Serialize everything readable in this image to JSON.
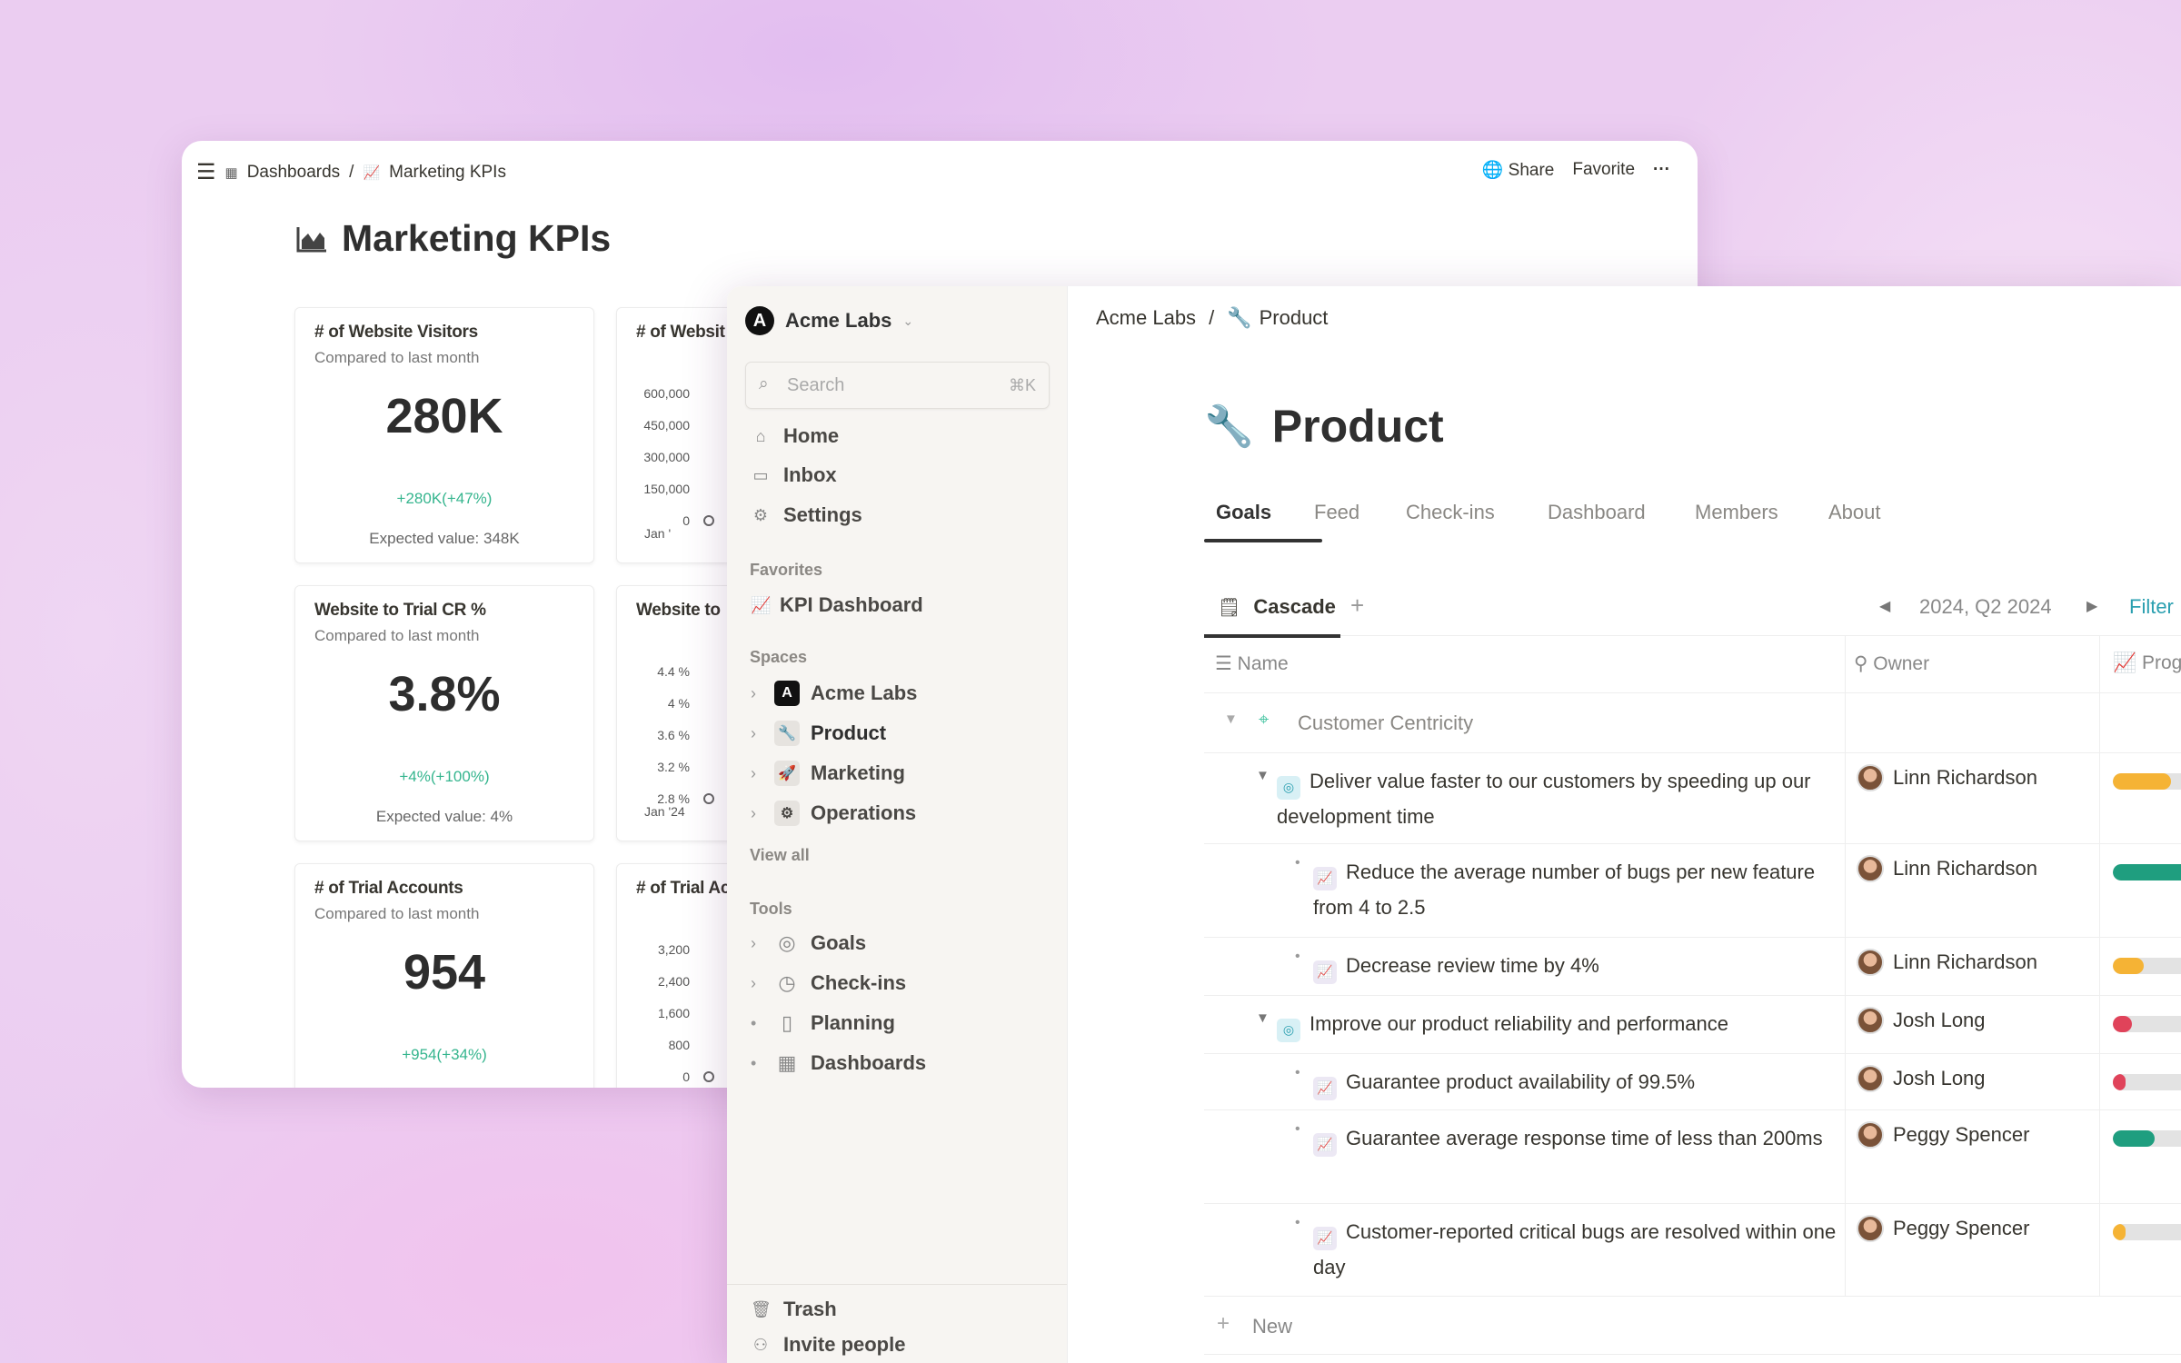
{
  "back_window": {
    "breadcrumb": [
      "Dashboards",
      "Marketing KPIs"
    ],
    "actions": {
      "share": "Share",
      "favorite": "Favorite",
      "more": "···"
    },
    "title": "Marketing KPIs",
    "cards": [
      {
        "title": "# of Website Visitors",
        "subtitle": "Compared to last month",
        "value": "280K",
        "delta": "+280K(+47%)",
        "expected": "Expected value: 348K"
      },
      {
        "title": "Website to Trial CR %",
        "subtitle": "Compared to last month",
        "value": "3.8%",
        "delta": "+4%(+100%)",
        "expected": "Expected value: 4%"
      },
      {
        "title": "# of Trial Accounts",
        "subtitle": "Compared to last month",
        "value": "954",
        "delta": "+954(+34%)",
        "expected": ""
      }
    ],
    "chart_cards": [
      {
        "title": "# of Websit",
        "ticks": [
          "600,000",
          "450,000",
          "300,000",
          "150,000",
          "0"
        ],
        "x_label": "Jan '"
      },
      {
        "title": "Website to",
        "ticks": [
          "4.4 %",
          "4 %",
          "3.6 %",
          "3.2 %",
          "2.8 %"
        ],
        "x_label": "Jan '24"
      },
      {
        "title": "# of Trial Ac",
        "ticks": [
          "3,200",
          "2,400",
          "1,600",
          "800",
          "0"
        ],
        "x_label": ""
      }
    ]
  },
  "sidebar": {
    "workspace": "Acme Labs",
    "search_placeholder": "Search",
    "search_shortcut": "⌘K",
    "nav": [
      {
        "label": "Home",
        "icon": "home-icon"
      },
      {
        "label": "Inbox",
        "icon": "inbox-icon"
      },
      {
        "label": "Settings",
        "icon": "gear-icon"
      }
    ],
    "favorites_label": "Favorites",
    "favorites": [
      {
        "label": "KPI Dashboard",
        "icon": "chart-icon"
      }
    ],
    "spaces_label": "Spaces",
    "spaces": [
      {
        "label": "Acme Labs",
        "icon": "acme-logo-icon"
      },
      {
        "label": "Product",
        "icon": "wrench-icon"
      },
      {
        "label": "Marketing",
        "icon": "rocket-icon"
      },
      {
        "label": "Operations",
        "icon": "gear-icon"
      }
    ],
    "view_all": "View all",
    "tools_label": "Tools",
    "tools": [
      {
        "label": "Goals",
        "icon": "compass-icon"
      },
      {
        "label": "Check-ins",
        "icon": "clock-icon"
      },
      {
        "label": "Planning",
        "icon": "map-icon"
      },
      {
        "label": "Dashboards",
        "icon": "grid-icon"
      }
    ],
    "trash": "Trash",
    "invite": "Invite people"
  },
  "main": {
    "breadcrumb": [
      "Acme Labs",
      "Product"
    ],
    "title": "Product",
    "tabs": [
      "Goals",
      "Feed",
      "Check-ins",
      "Dashboard",
      "Members",
      "About"
    ],
    "active_tab": "Goals",
    "view_tab": "Cascade",
    "period": "2024, Q2 2024",
    "filter": "Filter",
    "columns": {
      "name": "Name",
      "owner": "Owner",
      "progress": "Prog"
    },
    "group": "Customer Centricity",
    "rows": [
      {
        "level": 1,
        "type": "goal",
        "name": "Deliver value faster to our customers by speeding up our development time",
        "owner": "Linn Richardson",
        "progress": 40,
        "color": "#f5b335"
      },
      {
        "level": 2,
        "type": "kpi",
        "name": "Reduce the average number of bugs per new feature from 4 to 2.5",
        "owner": "Linn Richardson",
        "progress": 60,
        "color": "#1f9e7f"
      },
      {
        "level": 2,
        "type": "kpi",
        "name": "Decrease review time by 4%",
        "owner": "Linn Richardson",
        "progress": 21,
        "color": "#f5b335"
      },
      {
        "level": 1,
        "type": "goal",
        "name": "Improve our product reliability and performance",
        "owner": "Josh Long",
        "progress": 13,
        "color": "#e0435a"
      },
      {
        "level": 2,
        "type": "kpi",
        "name": "Guarantee product availability of 99.5%",
        "owner": "Josh Long",
        "progress": 9,
        "color": "#e0435a"
      },
      {
        "level": 2,
        "type": "kpi",
        "name": "Guarantee average response time of less than 200ms",
        "owner": "Peggy Spencer",
        "progress": 29,
        "color": "#1f9e7f"
      },
      {
        "level": 2,
        "type": "kpi",
        "name": "Customer-reported critical bugs are resolved within one day",
        "owner": "Peggy Spencer",
        "progress": 9,
        "color": "#f5b335"
      }
    ],
    "new_label": "New"
  }
}
